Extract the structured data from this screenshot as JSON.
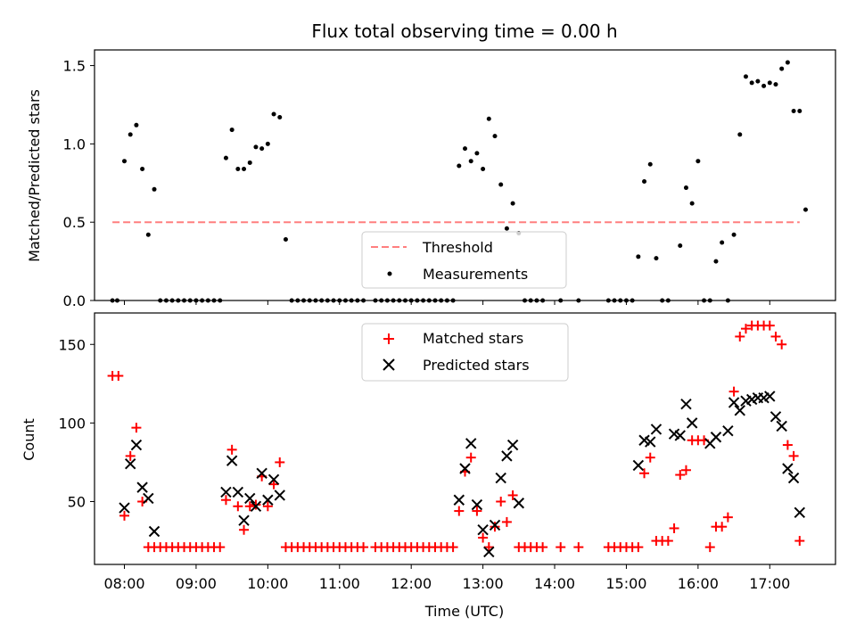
{
  "chart_data": [
    {
      "type": "scatter",
      "title": "Flux total observing time = 0.00 h",
      "ylabel": "Matched/Predicted stars",
      "xlabel": "",
      "xlim": [
        "07:35",
        "17:55"
      ],
      "ylim": [
        0,
        1.6
      ],
      "yticks": [
        "0.0",
        "0.5",
        "1.0",
        "1.5"
      ],
      "legend_position": "lower center",
      "threshold": {
        "name": "Threshold",
        "value": 0.5,
        "x_range": [
          "07:50",
          "17:25"
        ],
        "color": "#ff7f7f",
        "style": "dashed"
      },
      "series": [
        {
          "name": "Measurements",
          "marker": "dot",
          "color": "#000000",
          "points": [
            [
              "07:50",
              0
            ],
            [
              "07:54",
              0
            ],
            [
              "08:00",
              0.89
            ],
            [
              "08:05",
              1.06
            ],
            [
              "08:10",
              1.12
            ],
            [
              "08:15",
              0.84
            ],
            [
              "08:20",
              0.42
            ],
            [
              "08:25",
              0.71
            ],
            [
              "08:30",
              0
            ],
            [
              "08:35",
              0
            ],
            [
              "08:40",
              0
            ],
            [
              "08:45",
              0
            ],
            [
              "08:50",
              0
            ],
            [
              "08:55",
              0
            ],
            [
              "09:00",
              0
            ],
            [
              "09:05",
              0
            ],
            [
              "09:10",
              0
            ],
            [
              "09:15",
              0
            ],
            [
              "09:20",
              0
            ],
            [
              "09:25",
              0.91
            ],
            [
              "09:30",
              1.09
            ],
            [
              "09:35",
              0.84
            ],
            [
              "09:40",
              0.84
            ],
            [
              "09:45",
              0.88
            ],
            [
              "09:50",
              0.98
            ],
            [
              "09:55",
              0.97
            ],
            [
              "10:00",
              1.0
            ],
            [
              "10:05",
              1.19
            ],
            [
              "10:10",
              1.17
            ],
            [
              "10:15",
              0.39
            ],
            [
              "10:20",
              0
            ],
            [
              "10:25",
              0
            ],
            [
              "10:30",
              0
            ],
            [
              "10:35",
              0
            ],
            [
              "10:40",
              0
            ],
            [
              "10:45",
              0
            ],
            [
              "10:50",
              0
            ],
            [
              "10:55",
              0
            ],
            [
              "11:00",
              0
            ],
            [
              "11:05",
              0
            ],
            [
              "11:10",
              0
            ],
            [
              "11:15",
              0
            ],
            [
              "11:20",
              0
            ],
            [
              "11:30",
              0
            ],
            [
              "11:35",
              0
            ],
            [
              "11:40",
              0
            ],
            [
              "11:45",
              0
            ],
            [
              "11:50",
              0
            ],
            [
              "11:55",
              0
            ],
            [
              "12:00",
              0
            ],
            [
              "12:05",
              0
            ],
            [
              "12:10",
              0
            ],
            [
              "12:15",
              0
            ],
            [
              "12:20",
              0
            ],
            [
              "12:25",
              0
            ],
            [
              "12:30",
              0
            ],
            [
              "12:35",
              0
            ],
            [
              "12:40",
              0.86
            ],
            [
              "12:45",
              0.97
            ],
            [
              "12:50",
              0.89
            ],
            [
              "12:55",
              0.94
            ],
            [
              "13:00",
              0.84
            ],
            [
              "13:05",
              1.16
            ],
            [
              "13:10",
              1.05
            ],
            [
              "13:15",
              0.74
            ],
            [
              "13:20",
              0.46
            ],
            [
              "13:25",
              0.62
            ],
            [
              "13:30",
              0.43
            ],
            [
              "13:35",
              0
            ],
            [
              "13:40",
              0
            ],
            [
              "13:45",
              0
            ],
            [
              "13:50",
              0
            ],
            [
              "14:05",
              0
            ],
            [
              "14:20",
              0
            ],
            [
              "14:45",
              0
            ],
            [
              "14:50",
              0
            ],
            [
              "14:55",
              0
            ],
            [
              "15:00",
              0
            ],
            [
              "15:05",
              0
            ],
            [
              "15:10",
              0.28
            ],
            [
              "15:15",
              0.76
            ],
            [
              "15:20",
              0.87
            ],
            [
              "15:25",
              0.27
            ],
            [
              "15:30",
              0
            ],
            [
              "15:35",
              0
            ],
            [
              "15:45",
              0.35
            ],
            [
              "15:50",
              0.72
            ],
            [
              "15:55",
              0.62
            ],
            [
              "16:00",
              0.89
            ],
            [
              "16:05",
              0
            ],
            [
              "16:10",
              0
            ],
            [
              "16:15",
              0.25
            ],
            [
              "16:20",
              0.37
            ],
            [
              "16:25",
              0
            ],
            [
              "16:30",
              0.42
            ],
            [
              "16:35",
              1.06
            ],
            [
              "16:40",
              1.43
            ],
            [
              "16:45",
              1.39
            ],
            [
              "16:50",
              1.4
            ],
            [
              "16:55",
              1.37
            ],
            [
              "17:00",
              1.39
            ],
            [
              "17:05",
              1.38
            ],
            [
              "17:10",
              1.48
            ],
            [
              "17:15",
              1.52
            ],
            [
              "17:20",
              1.21
            ],
            [
              "17:25",
              1.21
            ],
            [
              "17:30",
              0.58
            ]
          ]
        }
      ]
    },
    {
      "type": "scatter",
      "title": "",
      "xlabel": "Time (UTC)",
      "ylabel": "Count",
      "xlim": [
        "07:35",
        "17:55"
      ],
      "ylim": [
        10,
        170
      ],
      "xticks": [
        "08:00",
        "09:00",
        "10:00",
        "11:00",
        "12:00",
        "13:00",
        "14:00",
        "15:00",
        "16:00",
        "17:00"
      ],
      "yticks": [
        "50",
        "100",
        "150"
      ],
      "legend_position": "upper center",
      "series": [
        {
          "name": "Matched stars",
          "marker": "plus",
          "color": "#ff0000",
          "points": [
            [
              "07:50",
              130
            ],
            [
              "07:55",
              130
            ],
            [
              "08:00",
              41
            ],
            [
              "08:05",
              79
            ],
            [
              "08:10",
              97
            ],
            [
              "08:15",
              50
            ],
            [
              "08:20",
              21
            ],
            [
              "08:25",
              21
            ],
            [
              "08:30",
              21
            ],
            [
              "08:35",
              21
            ],
            [
              "08:40",
              21
            ],
            [
              "08:45",
              21
            ],
            [
              "08:50",
              21
            ],
            [
              "08:55",
              21
            ],
            [
              "09:00",
              21
            ],
            [
              "09:05",
              21
            ],
            [
              "09:10",
              21
            ],
            [
              "09:15",
              21
            ],
            [
              "09:20",
              21
            ],
            [
              "09:25",
              51
            ],
            [
              "09:30",
              83
            ],
            [
              "09:35",
              47
            ],
            [
              "09:40",
              32
            ],
            [
              "09:45",
              47
            ],
            [
              "09:50",
              48
            ],
            [
              "09:55",
              66
            ],
            [
              "10:00",
              47
            ],
            [
              "10:05",
              61
            ],
            [
              "10:10",
              75
            ],
            [
              "10:15",
              21
            ],
            [
              "10:20",
              21
            ],
            [
              "10:25",
              21
            ],
            [
              "10:30",
              21
            ],
            [
              "10:35",
              21
            ],
            [
              "10:40",
              21
            ],
            [
              "10:45",
              21
            ],
            [
              "10:50",
              21
            ],
            [
              "10:55",
              21
            ],
            [
              "11:00",
              21
            ],
            [
              "11:05",
              21
            ],
            [
              "11:10",
              21
            ],
            [
              "11:15",
              21
            ],
            [
              "11:20",
              21
            ],
            [
              "11:30",
              21
            ],
            [
              "11:35",
              21
            ],
            [
              "11:40",
              21
            ],
            [
              "11:45",
              21
            ],
            [
              "11:50",
              21
            ],
            [
              "11:55",
              21
            ],
            [
              "12:00",
              21
            ],
            [
              "12:05",
              21
            ],
            [
              "12:10",
              21
            ],
            [
              "12:15",
              21
            ],
            [
              "12:20",
              21
            ],
            [
              "12:25",
              21
            ],
            [
              "12:30",
              21
            ],
            [
              "12:35",
              21
            ],
            [
              "12:40",
              44
            ],
            [
              "12:45",
              69
            ],
            [
              "12:50",
              78
            ],
            [
              "12:55",
              44
            ],
            [
              "13:00",
              27
            ],
            [
              "13:05",
              21
            ],
            [
              "13:10",
              34
            ],
            [
              "13:15",
              50
            ],
            [
              "13:20",
              37
            ],
            [
              "13:25",
              54
            ],
            [
              "13:30",
              21
            ],
            [
              "13:35",
              21
            ],
            [
              "13:40",
              21
            ],
            [
              "13:45",
              21
            ],
            [
              "13:50",
              21
            ],
            [
              "14:05",
              21
            ],
            [
              "14:20",
              21
            ],
            [
              "14:45",
              21
            ],
            [
              "14:50",
              21
            ],
            [
              "14:55",
              21
            ],
            [
              "15:00",
              21
            ],
            [
              "15:05",
              21
            ],
            [
              "15:10",
              21
            ],
            [
              "15:15",
              68
            ],
            [
              "15:20",
              78
            ],
            [
              "15:25",
              25
            ],
            [
              "15:30",
              25
            ],
            [
              "15:35",
              25
            ],
            [
              "15:40",
              33
            ],
            [
              "15:45",
              67
            ],
            [
              "15:50",
              70
            ],
            [
              "15:55",
              89
            ],
            [
              "16:00",
              89
            ],
            [
              "16:05",
              89
            ],
            [
              "16:10",
              21
            ],
            [
              "16:15",
              34
            ],
            [
              "16:20",
              34
            ],
            [
              "16:25",
              40
            ],
            [
              "16:30",
              120
            ],
            [
              "16:35",
              155
            ],
            [
              "16:40",
              160
            ],
            [
              "16:45",
              162
            ],
            [
              "16:50",
              162
            ],
            [
              "16:55",
              162
            ],
            [
              "17:00",
              162
            ],
            [
              "17:05",
              155
            ],
            [
              "17:10",
              150
            ],
            [
              "17:15",
              86
            ],
            [
              "17:20",
              79
            ],
            [
              "17:25",
              25
            ]
          ]
        },
        {
          "name": "Predicted stars",
          "marker": "x",
          "color": "#000000",
          "points": [
            [
              "08:00",
              46
            ],
            [
              "08:05",
              74
            ],
            [
              "08:10",
              86
            ],
            [
              "08:15",
              59
            ],
            [
              "08:20",
              52
            ],
            [
              "08:25",
              31
            ],
            [
              "09:25",
              56
            ],
            [
              "09:30",
              76
            ],
            [
              "09:35",
              56
            ],
            [
              "09:40",
              38
            ],
            [
              "09:45",
              52
            ],
            [
              "09:50",
              47
            ],
            [
              "09:55",
              68
            ],
            [
              "10:00",
              51
            ],
            [
              "10:05",
              64
            ],
            [
              "10:10",
              54
            ],
            [
              "12:40",
              51
            ],
            [
              "12:45",
              71
            ],
            [
              "12:50",
              87
            ],
            [
              "12:55",
              48
            ],
            [
              "13:00",
              32
            ],
            [
              "13:05",
              18
            ],
            [
              "13:10",
              35
            ],
            [
              "13:15",
              65
            ],
            [
              "13:20",
              79
            ],
            [
              "13:25",
              86
            ],
            [
              "13:30",
              49
            ],
            [
              "15:10",
              73
            ],
            [
              "15:15",
              89
            ],
            [
              "15:20",
              88
            ],
            [
              "15:25",
              96
            ],
            [
              "15:40",
              93
            ],
            [
              "15:45",
              92
            ],
            [
              "15:50",
              112
            ],
            [
              "15:55",
              100
            ],
            [
              "16:10",
              87
            ],
            [
              "16:15",
              91
            ],
            [
              "16:25",
              95
            ],
            [
              "16:30",
              113
            ],
            [
              "16:35",
              108
            ],
            [
              "16:40",
              114
            ],
            [
              "16:45",
              115
            ],
            [
              "16:50",
              116
            ],
            [
              "16:55",
              116
            ],
            [
              "17:00",
              117
            ],
            [
              "17:05",
              104
            ],
            [
              "17:10",
              98
            ],
            [
              "17:15",
              71
            ],
            [
              "17:20",
              65
            ],
            [
              "17:25",
              43
            ]
          ]
        }
      ]
    }
  ]
}
